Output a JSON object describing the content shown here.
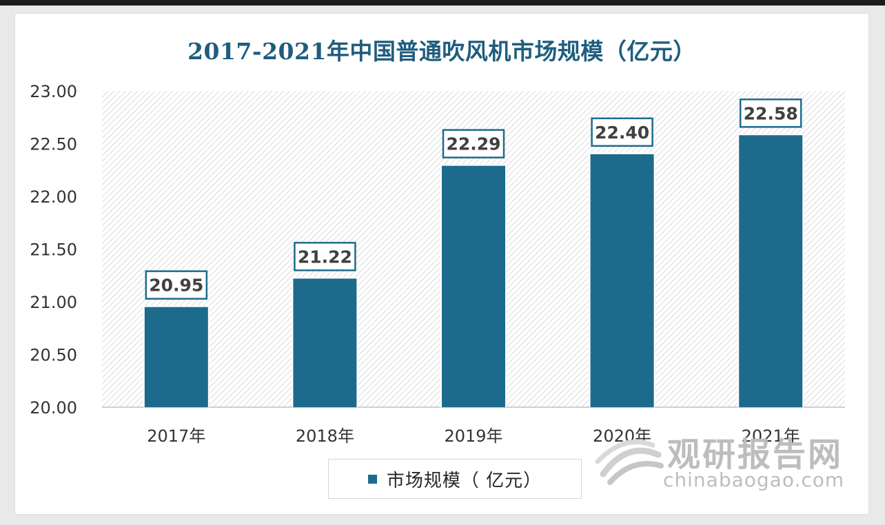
{
  "title": "2017-2021年中国普通吹风机市场规模（亿元）",
  "legend": {
    "label": "市场规模（ 亿元）"
  },
  "watermark": {
    "brand": "观研报告网",
    "site": "chinabaogao.com"
  },
  "chart_data": {
    "type": "bar",
    "title": "2017-2021年中国普通吹风机市场规模（亿元）",
    "categories": [
      "2017年",
      "2018年",
      "2019年",
      "2020年",
      "2021年"
    ],
    "series": [
      {
        "name": "市场规模（ 亿元）",
        "values": [
          20.95,
          21.22,
          22.29,
          22.4,
          22.58
        ]
      }
    ],
    "value_labels": [
      "20.95",
      "21.22",
      "22.29",
      "22.40",
      "22.58"
    ],
    "ylim": [
      20.0,
      23.0
    ],
    "yticks": [
      "20.00",
      "20.50",
      "21.00",
      "21.50",
      "22.00",
      "22.50",
      "23.00"
    ],
    "xlabel": "",
    "ylabel": "",
    "grid": false,
    "legend_position": "bottom",
    "colors": {
      "bar": "#1c6b8c",
      "title": "#1f5d7e",
      "plot_hatch": "#d9d9d9"
    }
  }
}
